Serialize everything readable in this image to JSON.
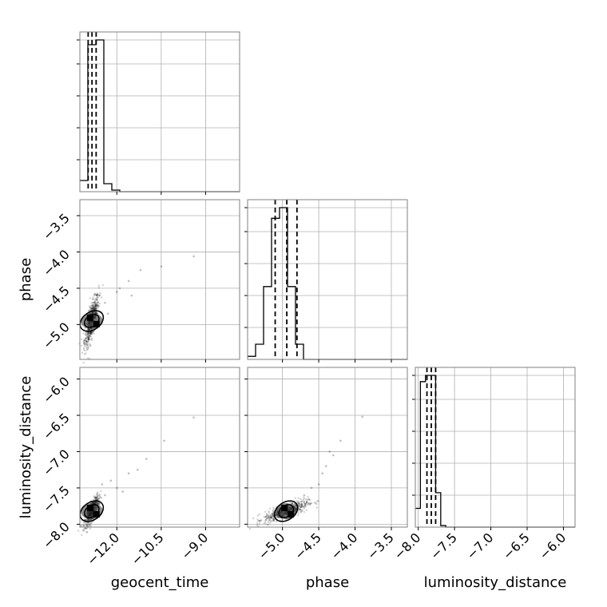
{
  "chart_data": {
    "type": "corner",
    "params": [
      {
        "id": "geocent_time",
        "label": "geocent_time",
        "range": [
          -13.25,
          -7.85
        ],
        "ticks": [
          -12.0,
          -10.5,
          -9.0
        ]
      },
      {
        "id": "phase",
        "label": "phase",
        "range": [
          -5.48,
          -3.28
        ],
        "ticks": [
          -5.0,
          -4.5,
          -4.0,
          -3.5
        ]
      },
      {
        "id": "luminosity_distance",
        "label": "luminosity_distance",
        "range": [
          -8.04,
          -5.84
        ],
        "ticks": [
          -8.0,
          -7.5,
          -7.0,
          -6.5,
          -6.0
        ]
      }
    ],
    "tick_labels": {
      "geocent_time": [
        "−12.0",
        "−10.5",
        "−9.0"
      ],
      "phase": [
        "−5.0",
        "−4.5",
        "−4.0",
        "−3.5"
      ],
      "luminosity_distance": [
        "−8.0",
        "−7.5",
        "−7.0",
        "−6.5",
        "−6.0"
      ]
    },
    "histograms": [
      {
        "param": "geocent_time",
        "bin_edges": [
          -13.25,
          -12.98,
          -12.71,
          -12.44,
          -12.17,
          -11.9,
          -11.63
        ],
        "counts": [
          0.07,
          0.92,
          0.95,
          0.05,
          0.01,
          0.0
        ],
        "quantiles": [
          -12.97,
          -12.84,
          -12.7
        ]
      },
      {
        "param": "phase",
        "bin_edges": [
          -5.48,
          -5.37,
          -5.26,
          -5.15,
          -5.04,
          -4.93,
          -4.82,
          -4.71,
          -4.6,
          -4.49
        ],
        "counts": [
          0.02,
          0.1,
          0.48,
          0.93,
          1.0,
          0.48,
          0.1,
          0.0,
          0.0
        ],
        "quantiles": [
          -5.1,
          -4.94,
          -4.8
        ]
      },
      {
        "param": "luminosity_distance",
        "bin_edges": [
          -8.04,
          -7.97,
          -7.9,
          -7.83,
          -7.76,
          -7.69,
          -7.62,
          -7.55
        ],
        "counts": [
          0.12,
          0.93,
          0.97,
          0.97,
          0.22,
          0.01,
          0.0
        ],
        "quantiles": [
          -7.88,
          -7.82,
          -7.76
        ]
      }
    ],
    "scatter_panels": [
      {
        "x": "geocent_time",
        "y": "phase",
        "center": [
          -12.85,
          -4.95
        ],
        "spread": [
          0.12,
          0.17
        ],
        "extra_points": [
          [
            -12.4,
            -4.7
          ],
          [
            -12.0,
            -4.55
          ],
          [
            -11.6,
            -4.4
          ],
          [
            -11.2,
            -4.25
          ],
          [
            -10.5,
            -4.2
          ],
          [
            -9.4,
            -4.06
          ],
          [
            -12.3,
            -4.85
          ],
          [
            -11.9,
            -4.5
          ],
          [
            -12.6,
            -4.6
          ],
          [
            -11.5,
            -4.6
          ]
        ]
      },
      {
        "x": "geocent_time",
        "y": "luminosity_distance",
        "center": [
          -12.85,
          -7.82
        ],
        "spread": [
          0.12,
          0.1
        ],
        "extra_points": [
          [
            -12.4,
            -7.6
          ],
          [
            -12.0,
            -7.5
          ],
          [
            -11.6,
            -7.3
          ],
          [
            -11.3,
            -7.25
          ],
          [
            -11.0,
            -7.1
          ],
          [
            -10.4,
            -6.85
          ],
          [
            -9.4,
            -6.53
          ],
          [
            -12.2,
            -7.4
          ],
          [
            -11.8,
            -7.55
          ],
          [
            -12.5,
            -7.45
          ]
        ]
      },
      {
        "x": "phase",
        "y": "luminosity_distance",
        "center": [
          -4.95,
          -7.82
        ],
        "spread": [
          0.15,
          0.07
        ],
        "extra_points": [
          [
            -4.6,
            -7.5
          ],
          [
            -4.45,
            -7.3
          ],
          [
            -4.3,
            -7.05
          ],
          [
            -4.2,
            -6.85
          ],
          [
            -3.9,
            -6.52
          ],
          [
            -4.5,
            -7.45
          ],
          [
            -4.4,
            -7.2
          ],
          [
            -4.7,
            -7.6
          ],
          [
            -4.35,
            -7.0
          ]
        ]
      }
    ],
    "grid": true,
    "colors": {
      "line": "#000000",
      "grid": "#b0b0b0",
      "frame": "#808080",
      "points": "#000000"
    }
  }
}
